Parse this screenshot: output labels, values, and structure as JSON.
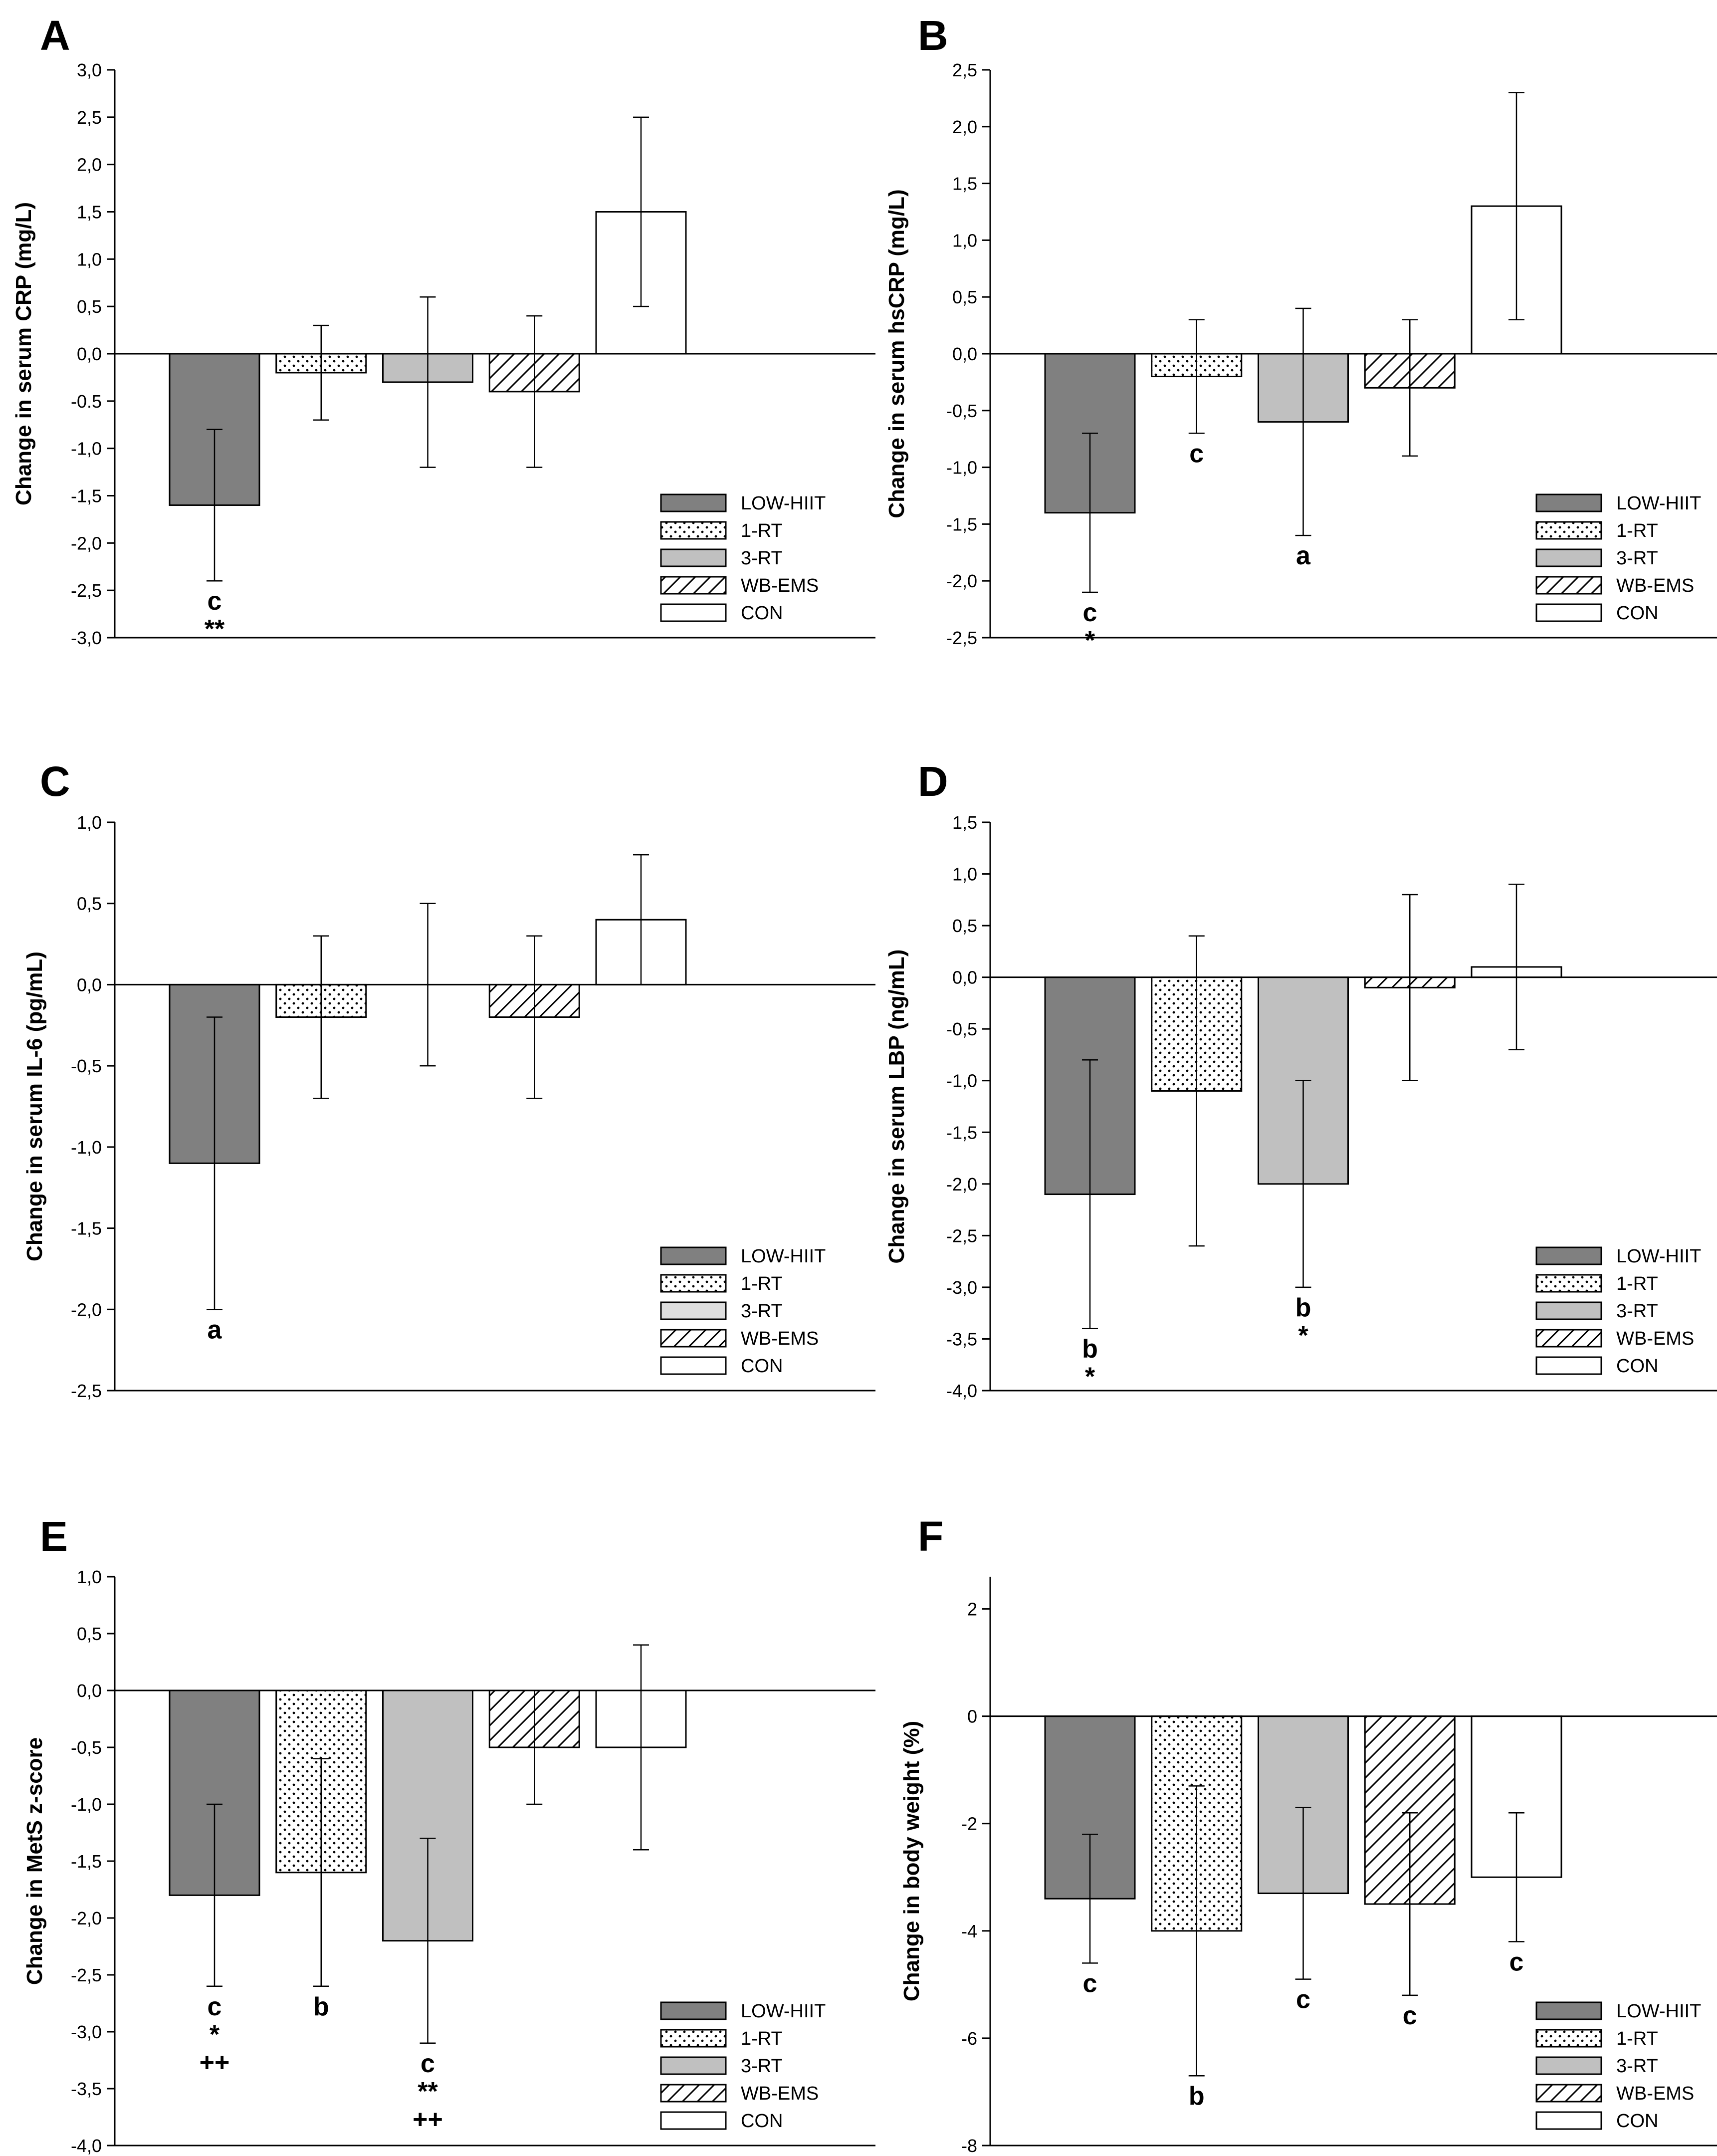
{
  "legend": {
    "series": [
      {
        "key": "low_hiit",
        "name": "LOW-HIIT",
        "pattern": "dark"
      },
      {
        "key": "rt1",
        "name": "1-RT",
        "pattern": "dots"
      },
      {
        "key": "rt3",
        "name": "3-RT",
        "pattern": "light"
      },
      {
        "key": "wbems",
        "name": "WB-EMS",
        "pattern": "hatch"
      },
      {
        "key": "con",
        "name": "CON",
        "pattern": "white"
      }
    ]
  },
  "colors": {
    "dark": "#808080",
    "light": "#c0c0c0",
    "lightC": "#dedede",
    "white": "#ffffff",
    "ink": "#000000"
  },
  "chart_data": [
    {
      "panel": "A",
      "type": "bar",
      "title": "",
      "xlabel": "",
      "ylabel": "Change in serum CRP (mg/L)",
      "ylim": [
        -3.0,
        3.0
      ],
      "yticks": [
        3.0,
        2.5,
        2.0,
        1.5,
        1.0,
        0.5,
        0.0,
        -0.5,
        -1.0,
        -1.5,
        -2.0,
        -2.5,
        -3.0
      ],
      "ytick_labels": [
        "3,0",
        "2,5",
        "2,0",
        "1,5",
        "1,0",
        "0,5",
        "0,0",
        "-0.5",
        "-1,0",
        "-1,5",
        "-2,0",
        "-2,5",
        "-3,0"
      ],
      "bars": [
        {
          "series": "LOW-HIIT",
          "value": -1.6,
          "err_low": -2.4,
          "err_high": -0.8,
          "annotations": [
            "c",
            "**"
          ]
        },
        {
          "series": "1-RT",
          "value": -0.2,
          "err_low": -0.7,
          "err_high": 0.3,
          "annotations": []
        },
        {
          "series": "3-RT",
          "value": -0.3,
          "err_low": -1.2,
          "err_high": 0.6,
          "annotations": []
        },
        {
          "series": "WB-EMS",
          "value": -0.4,
          "err_low": -1.2,
          "err_high": 0.4,
          "annotations": []
        },
        {
          "series": "CON",
          "value": 1.5,
          "err_low": 0.5,
          "err_high": 2.5,
          "annotations": []
        }
      ]
    },
    {
      "panel": "B",
      "type": "bar",
      "title": "",
      "xlabel": "",
      "ylabel": "Change in serum hsCRP (mg/L)",
      "ylim": [
        -2.5,
        2.5
      ],
      "yticks": [
        2.5,
        2.0,
        1.5,
        1.0,
        0.5,
        0.0,
        -0.5,
        -1.0,
        -1.5,
        -2.0,
        -2.5
      ],
      "ytick_labels": [
        "2,5",
        "2,0",
        "1,5",
        "1,0",
        "0,5",
        "0,0",
        "-0,5",
        "-1,0",
        "-1,5",
        "-2,0",
        "-2,5"
      ],
      "bars": [
        {
          "series": "LOW-HIIT",
          "value": -1.4,
          "err_low": -2.1,
          "err_high": -0.7,
          "annotations": [
            "c",
            "*"
          ]
        },
        {
          "series": "1-RT",
          "value": -0.2,
          "err_low": -0.7,
          "err_high": 0.3,
          "annotations": [
            "c"
          ]
        },
        {
          "series": "3-RT",
          "value": -0.6,
          "err_low": -1.6,
          "err_high": 0.4,
          "annotations": [
            "a"
          ]
        },
        {
          "series": "WB-EMS",
          "value": -0.3,
          "err_low": -0.9,
          "err_high": 0.3,
          "annotations": []
        },
        {
          "series": "CON",
          "value": 1.3,
          "err_low": 0.3,
          "err_high": 2.3,
          "annotations": []
        }
      ]
    },
    {
      "panel": "C",
      "type": "bar",
      "title": "",
      "xlabel": "",
      "ylabel": "Change in serum IL-6 (pg/mL)",
      "ylim": [
        -2.5,
        1.0
      ],
      "yticks": [
        1.0,
        0.5,
        0.0,
        -0.5,
        -1.0,
        -1.5,
        -2.0,
        -2.5
      ],
      "ytick_labels": [
        "1,0",
        "0,5",
        "0,0",
        "-0,5",
        "-1,0",
        "-1,5",
        "-2,0",
        "-2,5"
      ],
      "bars": [
        {
          "series": "LOW-HIIT",
          "value": -1.1,
          "err_low": -2.0,
          "err_high": -0.2,
          "annotations": [
            "a"
          ]
        },
        {
          "series": "1-RT",
          "value": -0.2,
          "err_low": -0.7,
          "err_high": 0.3,
          "annotations": []
        },
        {
          "series": "3-RT",
          "value": 0.0,
          "err_low": -0.5,
          "err_high": 0.5,
          "annotations": []
        },
        {
          "series": "WB-EMS",
          "value": -0.2,
          "err_low": -0.7,
          "err_high": 0.3,
          "annotations": []
        },
        {
          "series": "CON",
          "value": 0.4,
          "err_low": 0.0,
          "err_high": 0.8,
          "annotations": []
        }
      ]
    },
    {
      "panel": "D",
      "type": "bar",
      "title": "",
      "xlabel": "",
      "ylabel": "Change in serum LBP (ng/mL)",
      "ylim": [
        -4.0,
        1.5
      ],
      "yticks": [
        1.5,
        1.0,
        0.5,
        0.0,
        -0.5,
        -1.0,
        -1.5,
        -2.0,
        -2.5,
        -3.0,
        -3.5,
        -4.0
      ],
      "ytick_labels": [
        "1,5",
        "1,0",
        "0,5",
        "0,0",
        "-0,5",
        "-1,0",
        "-1,5",
        "-2,0",
        "-2,5",
        "-3,0",
        "-3,5",
        "-4,0"
      ],
      "bars": [
        {
          "series": "LOW-HIIT",
          "value": -2.1,
          "err_low": -3.4,
          "err_high": -0.8,
          "annotations": [
            "b",
            "*"
          ]
        },
        {
          "series": "1-RT",
          "value": -1.1,
          "err_low": -2.6,
          "err_high": 0.4,
          "annotations": []
        },
        {
          "series": "3-RT",
          "value": -2.0,
          "err_low": -3.0,
          "err_high": -1.0,
          "annotations": [
            "b",
            "*"
          ]
        },
        {
          "series": "WB-EMS",
          "value": -0.1,
          "err_low": -1.0,
          "err_high": 0.8,
          "annotations": []
        },
        {
          "series": "CON",
          "value": 0.1,
          "err_low": -0.7,
          "err_high": 0.9,
          "annotations": []
        }
      ]
    },
    {
      "panel": "E",
      "type": "bar",
      "title": "",
      "xlabel": "",
      "ylabel": "Change in MetS z-score",
      "ylim": [
        -4.0,
        1.0
      ],
      "yticks": [
        1.0,
        0.5,
        0.0,
        -0.5,
        -1.0,
        -1.5,
        -2.0,
        -2.5,
        -3.0,
        -3.5,
        -4.0
      ],
      "ytick_labels": [
        "1,0",
        "0,5",
        "0,0",
        "-0,5",
        "-1,0",
        "-1,5",
        "-2,0",
        "-2,5",
        "-3,0",
        "-3,5",
        "-4,0"
      ],
      "bars": [
        {
          "series": "LOW-HIIT",
          "value": -1.8,
          "err_low": -2.6,
          "err_high": -1.0,
          "annotations": [
            "c",
            "*",
            "++"
          ]
        },
        {
          "series": "1-RT",
          "value": -1.6,
          "err_low": -2.6,
          "err_high": -0.6,
          "annotations": [
            "b"
          ]
        },
        {
          "series": "3-RT",
          "value": -2.2,
          "err_low": -3.1,
          "err_high": -1.3,
          "annotations": [
            "c",
            "**",
            "++"
          ]
        },
        {
          "series": "WB-EMS",
          "value": -0.5,
          "err_low": -1.0,
          "err_high": 0.0,
          "annotations": []
        },
        {
          "series": "CON",
          "value": -0.5,
          "err_low": -1.4,
          "err_high": 0.4,
          "annotations": []
        }
      ]
    },
    {
      "panel": "F",
      "type": "bar",
      "title": "",
      "xlabel": "",
      "ylabel": "Change in body weight (%)",
      "ylim": [
        -8.0,
        2.6
      ],
      "yticks": [
        2,
        0,
        -2,
        -4,
        -6,
        -8
      ],
      "ytick_labels": [
        "2",
        "0",
        "-2",
        "-4",
        "-6",
        "-8"
      ],
      "bars": [
        {
          "series": "LOW-HIIT",
          "value": -3.4,
          "err_low": -4.6,
          "err_high": -2.2,
          "annotations": [
            "c"
          ]
        },
        {
          "series": "1-RT",
          "value": -4.0,
          "err_low": -6.7,
          "err_high": -1.3,
          "annotations": [
            "b"
          ]
        },
        {
          "series": "3-RT",
          "value": -3.3,
          "err_low": -4.9,
          "err_high": -1.7,
          "annotations": [
            "c"
          ]
        },
        {
          "series": "WB-EMS",
          "value": -3.5,
          "err_low": -5.2,
          "err_high": -1.8,
          "annotations": [
            "c"
          ]
        },
        {
          "series": "CON",
          "value": -3.0,
          "err_low": -4.2,
          "err_high": -1.8,
          "annotations": [
            "c"
          ]
        }
      ]
    }
  ]
}
